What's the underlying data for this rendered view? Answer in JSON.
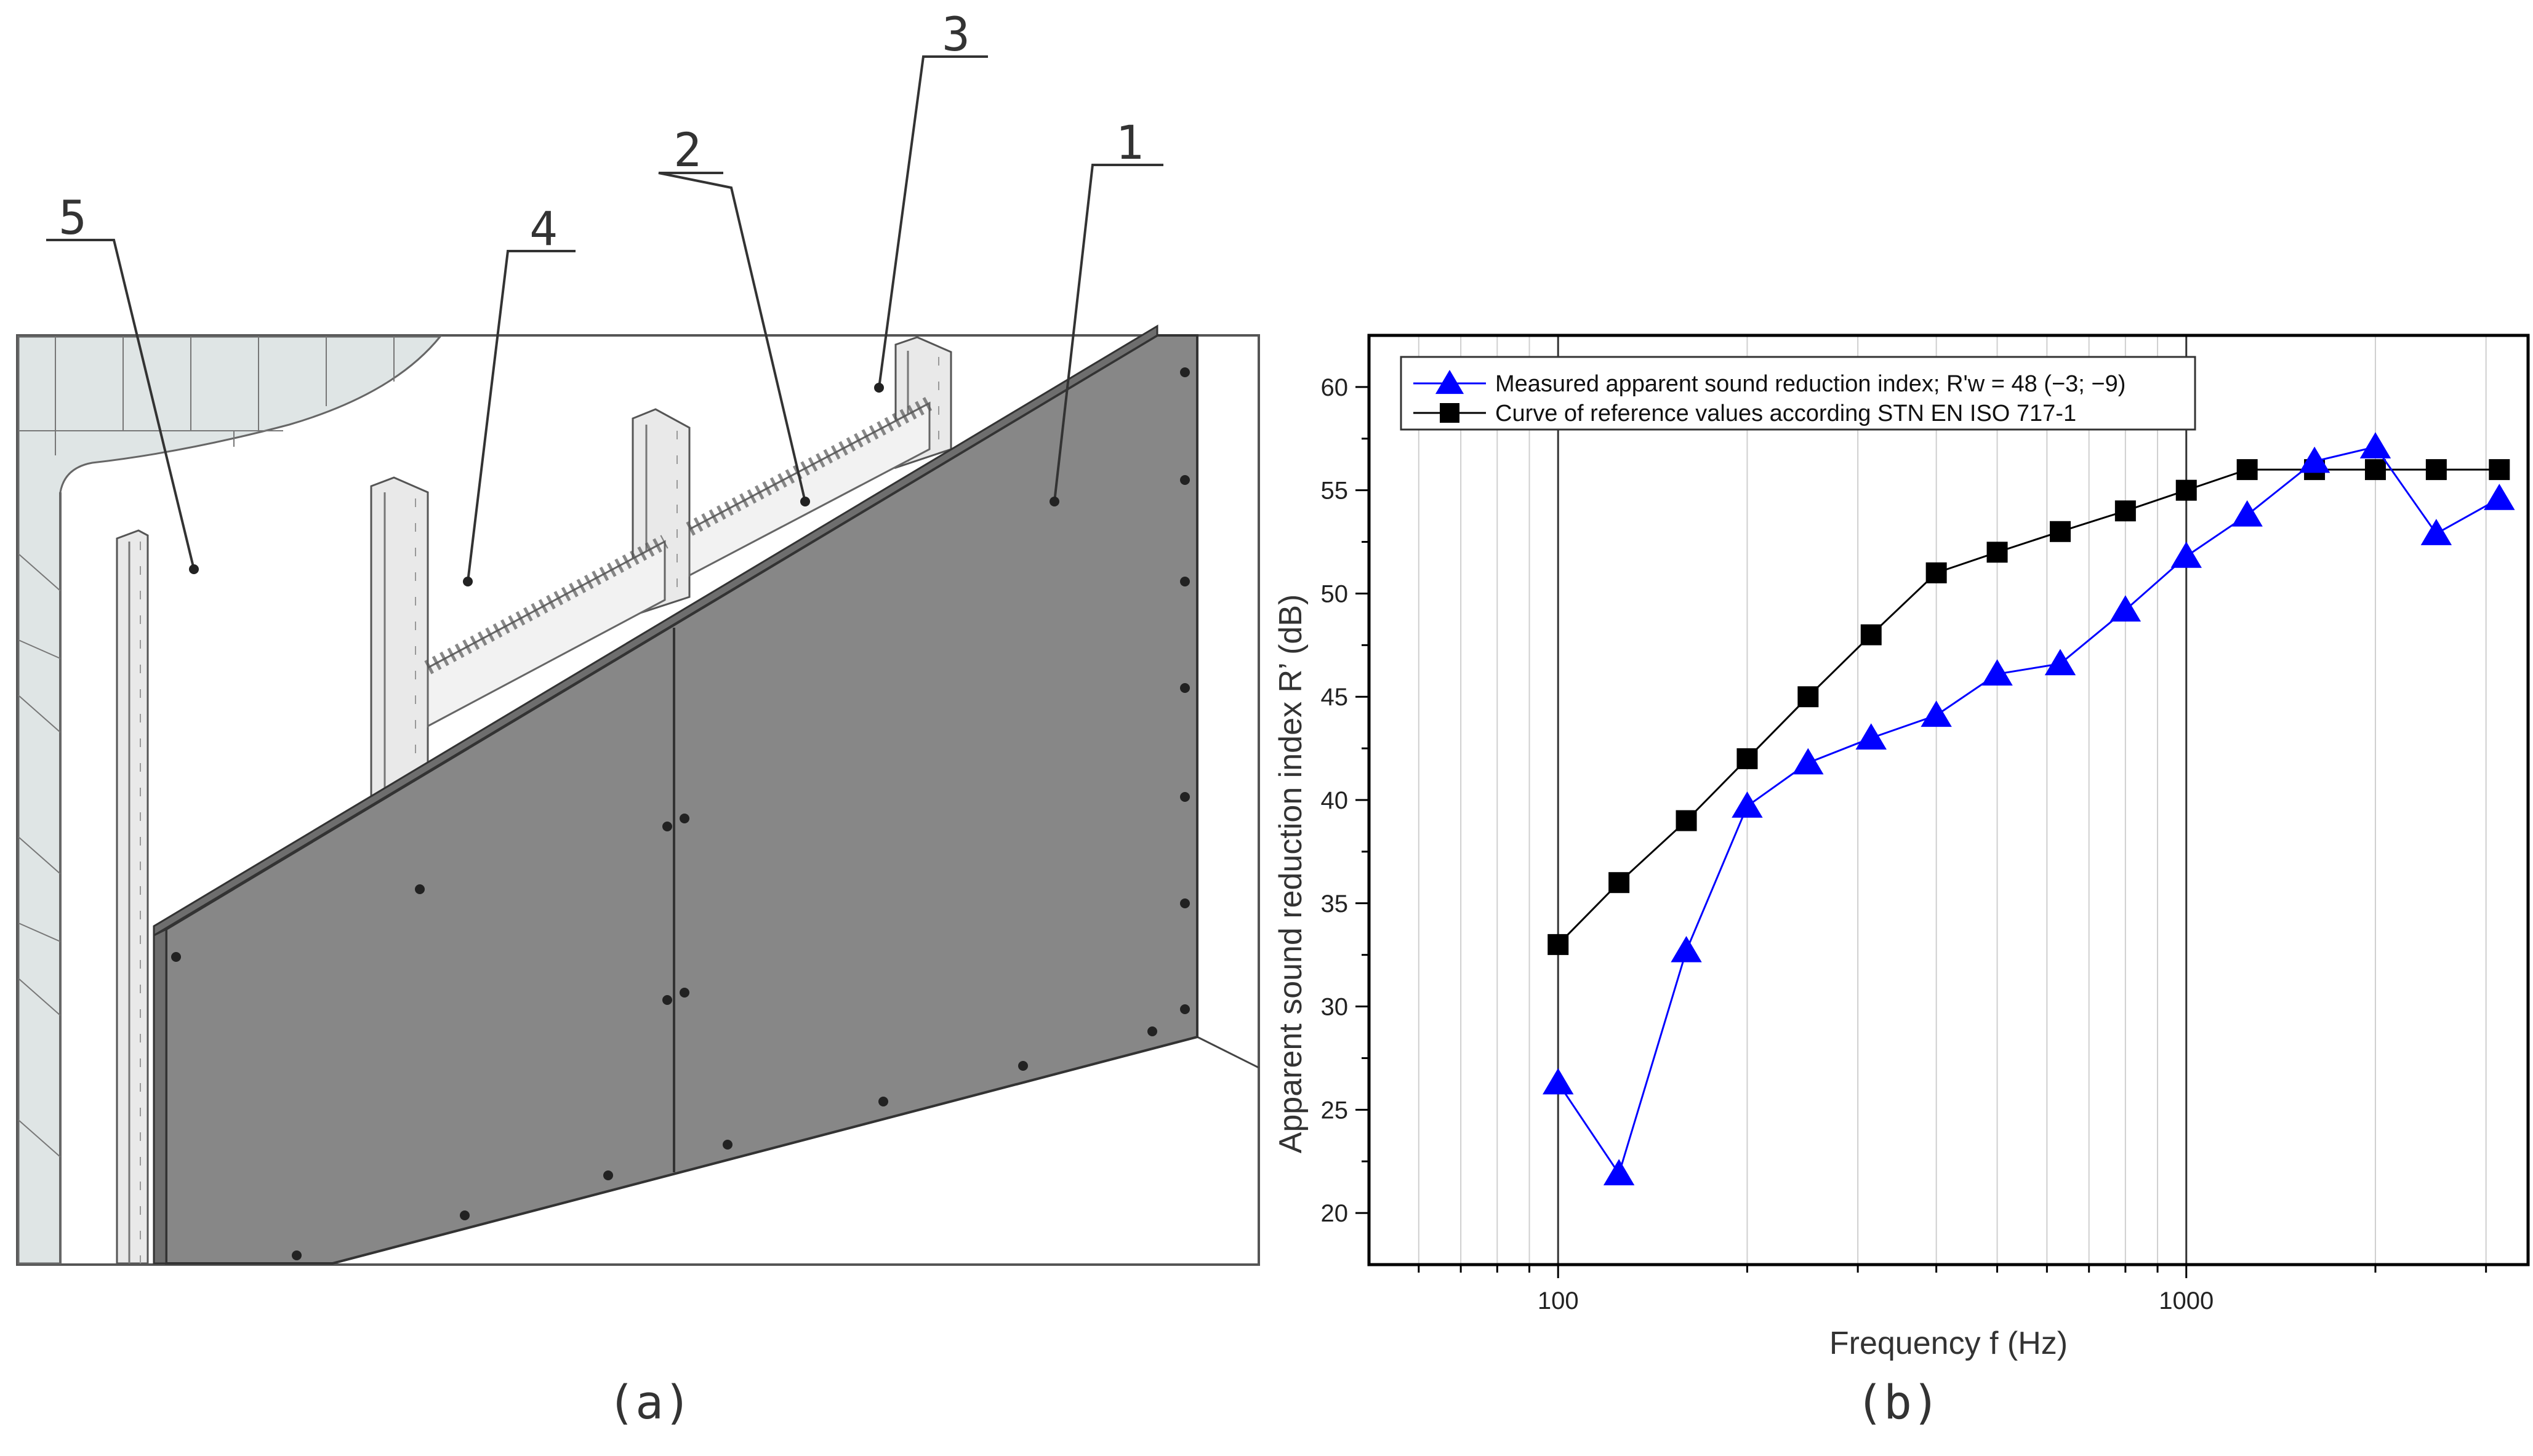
{
  "panel_a": {
    "label": "(a)",
    "callouts": [
      "1",
      "2",
      "3",
      "4",
      "5"
    ]
  },
  "panel_b": {
    "label": "(b)"
  },
  "colors": {
    "measured": "#0000ff",
    "reference": "#000000",
    "board": "#878787",
    "wall": "#dfe5e5"
  },
  "chart_data": {
    "type": "line",
    "xscale": "log",
    "xlabel": "Frequency f (Hz)",
    "ylabel": "Apparent sound reduction index R’ (dB)",
    "xlim": [
      50,
      3500
    ],
    "ylim": [
      17.5,
      62.5
    ],
    "x_ticks": [
      "100",
      "1000"
    ],
    "y_ticks": [
      "20",
      "25",
      "30",
      "35",
      "40",
      "45",
      "50",
      "55",
      "60"
    ],
    "grid": "vertical",
    "legend_position": "top-left",
    "x": [
      100,
      125,
      160,
      200,
      250,
      315,
      400,
      500,
      630,
      800,
      1000,
      1250,
      1600,
      2000,
      2500,
      3150
    ],
    "series": [
      {
        "name": "Measured apparent sound reduction index; R'w = 48 (−3; −9)",
        "marker": "triangle",
        "color": "#0000ff",
        "values": [
          26.3,
          21.9,
          32.7,
          39.7,
          41.8,
          43.0,
          44.1,
          46.1,
          46.6,
          49.2,
          51.8,
          53.8,
          56.4,
          57.1,
          52.9,
          54.6
        ]
      },
      {
        "name": "Curve of reference values according STN EN ISO 717-1",
        "marker": "square",
        "color": "#000000",
        "values": [
          33,
          36,
          39,
          42,
          45,
          48,
          51,
          52,
          53,
          54,
          55,
          56,
          56,
          56,
          56,
          56
        ]
      }
    ]
  }
}
